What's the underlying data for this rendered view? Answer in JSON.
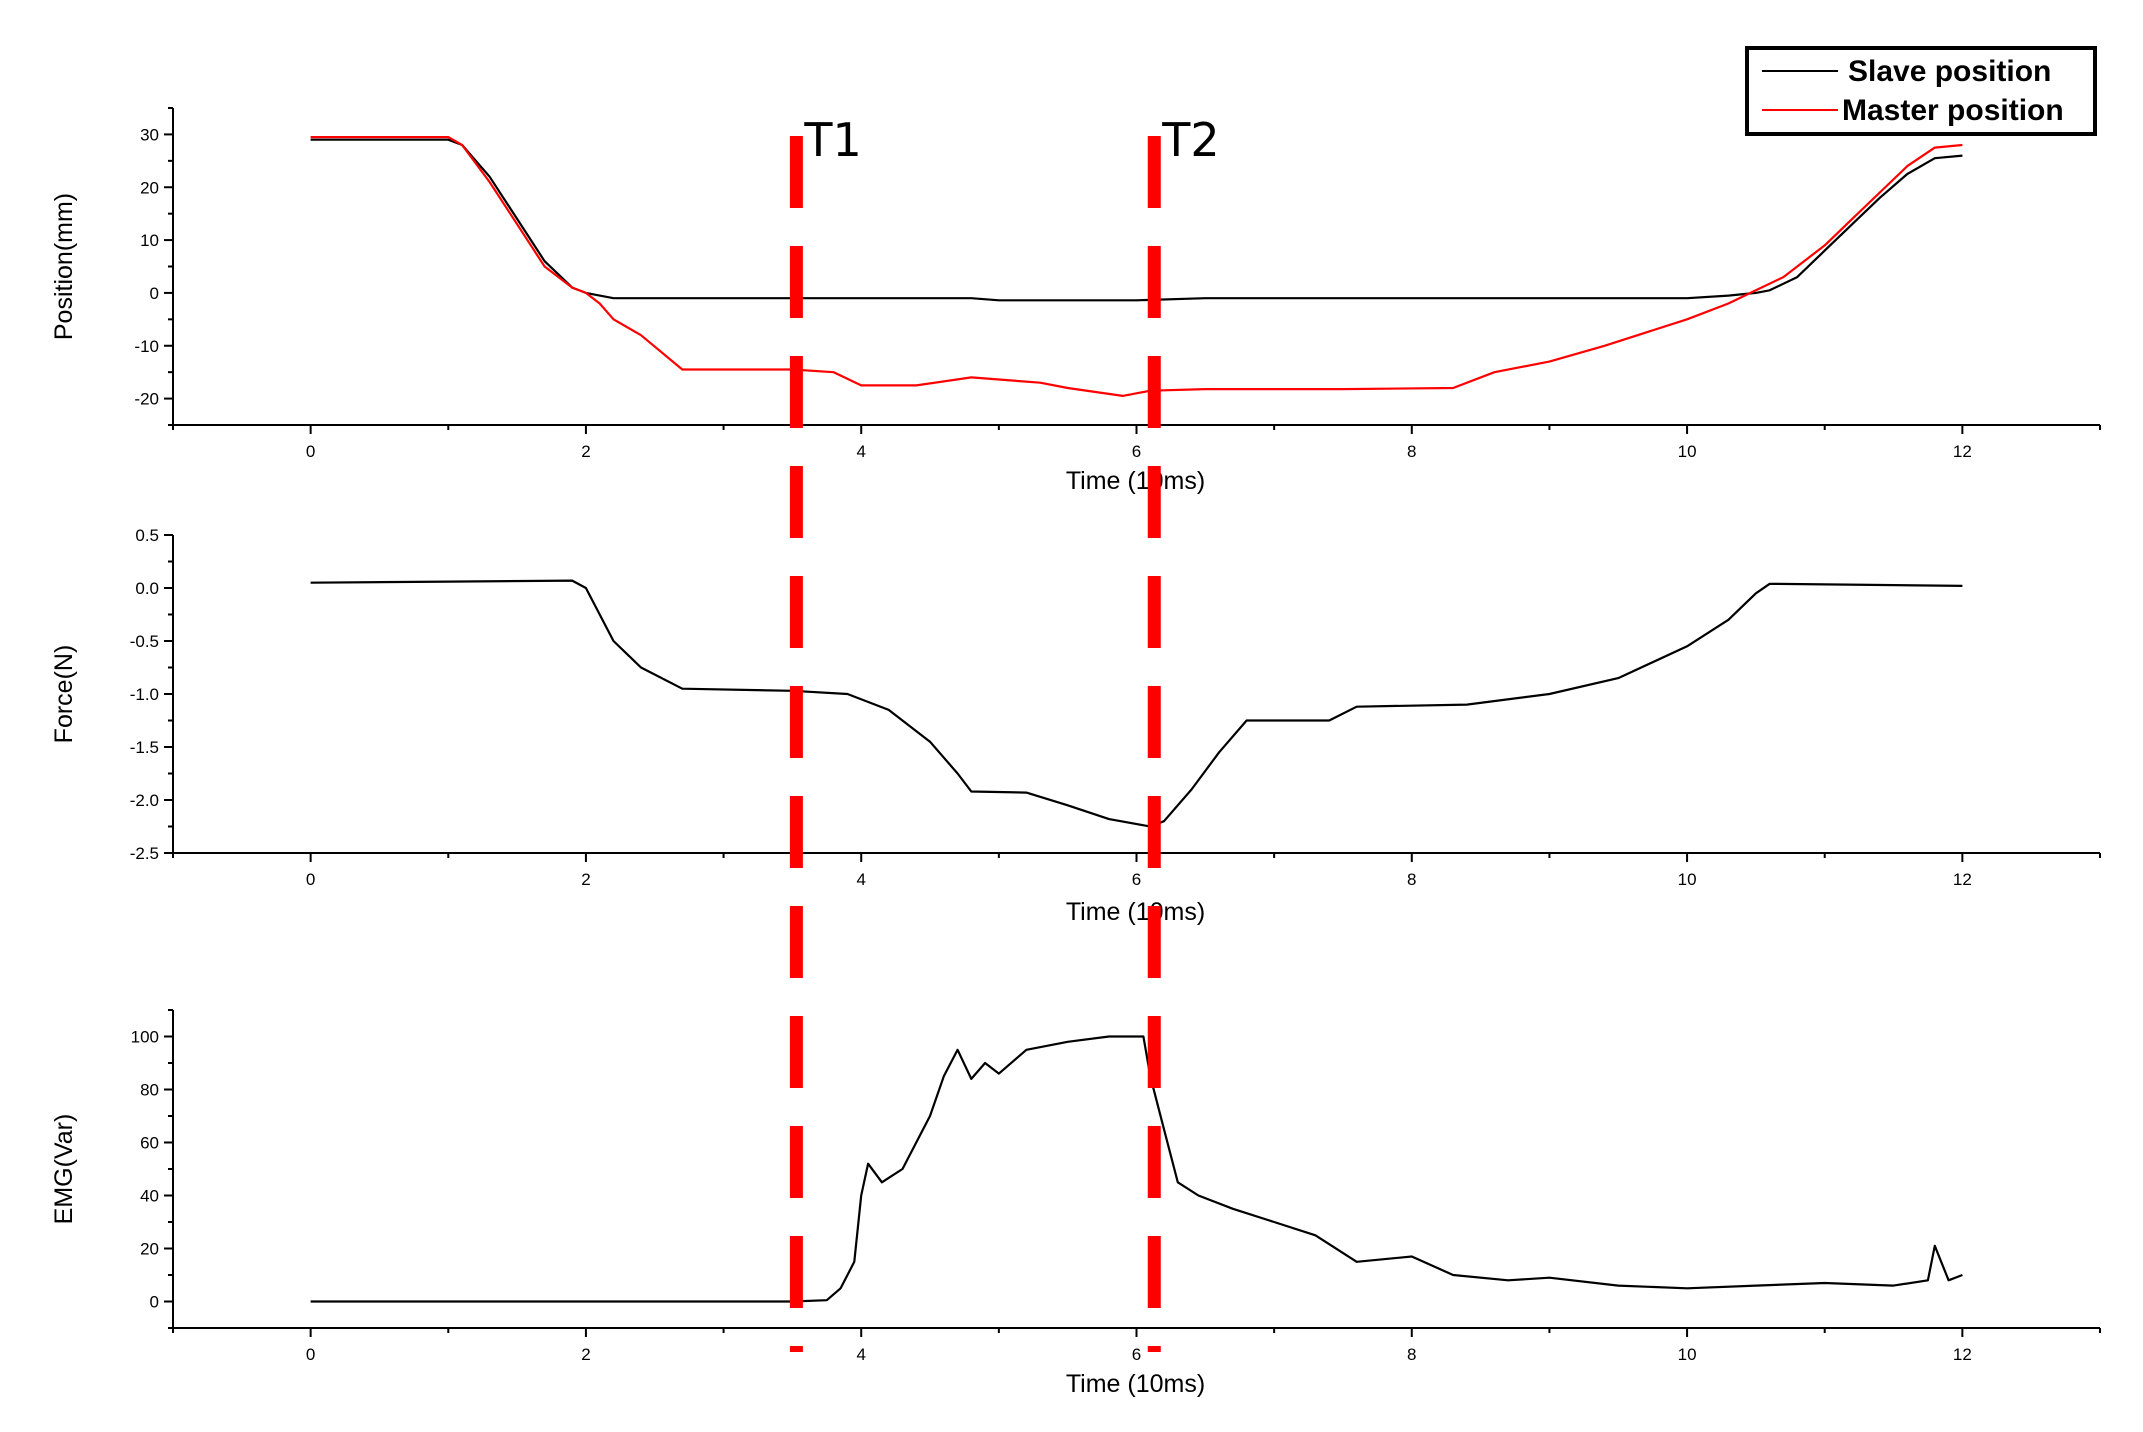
{
  "chart_data": [
    {
      "type": "line",
      "xlabel": "Time (10ms)",
      "ylabel": "Position(mm)",
      "xlim": [
        -1,
        13
      ],
      "ylim": [
        -25,
        35
      ],
      "x_ticks": [
        0,
        2,
        4,
        6,
        8,
        10,
        12
      ],
      "y_ticks": [
        30,
        20,
        10,
        0,
        -10,
        -20
      ],
      "legend_position": "top-right",
      "series": [
        {
          "name": "Slave position",
          "color": "#000000",
          "points": [
            [
              0,
              29
            ],
            [
              1,
              29
            ],
            [
              1.1,
              28
            ],
            [
              1.3,
              22
            ],
            [
              1.5,
              14
            ],
            [
              1.7,
              6
            ],
            [
              1.9,
              1
            ],
            [
              2,
              0
            ],
            [
              2.2,
              -1
            ],
            [
              4,
              -1
            ],
            [
              4.8,
              -1
            ],
            [
              5,
              -1.4
            ],
            [
              6,
              -1.4
            ],
            [
              6.5,
              -1
            ],
            [
              8,
              -1
            ],
            [
              10,
              -1
            ],
            [
              10.3,
              -0.5
            ],
            [
              10.5,
              0
            ],
            [
              10.6,
              0.5
            ],
            [
              10.8,
              3
            ],
            [
              11,
              8
            ],
            [
              11.2,
              13
            ],
            [
              11.4,
              18
            ],
            [
              11.6,
              22.5
            ],
            [
              11.8,
              25.5
            ],
            [
              12,
              26
            ]
          ]
        },
        {
          "name": "Master position",
          "color": "#ff0000",
          "points": [
            [
              0,
              29.5
            ],
            [
              1,
              29.5
            ],
            [
              1.1,
              28
            ],
            [
              1.3,
              21
            ],
            [
              1.5,
              13
            ],
            [
              1.7,
              5
            ],
            [
              1.9,
              1
            ],
            [
              2,
              0
            ],
            [
              2.1,
              -2
            ],
            [
              2.2,
              -5
            ],
            [
              2.4,
              -8
            ],
            [
              2.7,
              -14.5
            ],
            [
              3.5,
              -14.5
            ],
            [
              3.8,
              -15
            ],
            [
              4,
              -17.5
            ],
            [
              4.4,
              -17.5
            ],
            [
              4.8,
              -16
            ],
            [
              5.3,
              -17
            ],
            [
              5.5,
              -18
            ],
            [
              5.9,
              -19.5
            ],
            [
              6.1,
              -18.5
            ],
            [
              6.5,
              -18.2
            ],
            [
              7.5,
              -18.2
            ],
            [
              8.3,
              -18
            ],
            [
              8.6,
              -15
            ],
            [
              9,
              -13
            ],
            [
              9.4,
              -10
            ],
            [
              10,
              -5
            ],
            [
              10.3,
              -2
            ],
            [
              10.5,
              0.5
            ],
            [
              10.7,
              3
            ],
            [
              11,
              9
            ],
            [
              11.2,
              14
            ],
            [
              11.4,
              19
            ],
            [
              11.6,
              24
            ],
            [
              11.8,
              27.5
            ],
            [
              12,
              28
            ]
          ]
        }
      ]
    },
    {
      "type": "line",
      "xlabel": "Time (10ms)",
      "ylabel": "Force(N)",
      "xlim": [
        -1,
        13
      ],
      "ylim": [
        -2.5,
        0.5
      ],
      "x_ticks": [
        0,
        2,
        4,
        6,
        8,
        10,
        12
      ],
      "y_ticks": [
        0.5,
        0.0,
        -0.5,
        -1.0,
        -1.5,
        -2.0,
        -2.5
      ],
      "y_tick_labels": [
        "0.5",
        "0.0",
        "-0.5",
        "-1.0",
        "-1.5",
        "-2.0",
        "-2.5"
      ],
      "series": [
        {
          "name": "",
          "color": "#000000",
          "points": [
            [
              0,
              0.05
            ],
            [
              1,
              0.06
            ],
            [
              1.9,
              0.07
            ],
            [
              2,
              0
            ],
            [
              2.2,
              -0.5
            ],
            [
              2.4,
              -0.75
            ],
            [
              2.7,
              -0.95
            ],
            [
              3.5,
              -0.97
            ],
            [
              3.9,
              -1.0
            ],
            [
              4.2,
              -1.15
            ],
            [
              4.5,
              -1.45
            ],
            [
              4.7,
              -1.75
            ],
            [
              4.8,
              -1.92
            ],
            [
              5.2,
              -1.93
            ],
            [
              5.5,
              -2.05
            ],
            [
              5.8,
              -2.18
            ],
            [
              6.1,
              -2.25
            ],
            [
              6.2,
              -2.2
            ],
            [
              6.4,
              -1.9
            ],
            [
              6.6,
              -1.55
            ],
            [
              6.8,
              -1.25
            ],
            [
              7.4,
              -1.25
            ],
            [
              7.6,
              -1.12
            ],
            [
              8.4,
              -1.1
            ],
            [
              9,
              -1.0
            ],
            [
              9.5,
              -0.85
            ],
            [
              10,
              -0.55
            ],
            [
              10.3,
              -0.3
            ],
            [
              10.5,
              -0.05
            ],
            [
              10.6,
              0.04
            ],
            [
              12,
              0.02
            ]
          ]
        }
      ]
    },
    {
      "type": "line",
      "xlabel": "Time (10ms)",
      "ylabel": "EMG(Var)",
      "xlim": [
        -1,
        13
      ],
      "ylim": [
        -10,
        110
      ],
      "x_ticks": [
        0,
        2,
        4,
        6,
        8,
        10,
        12
      ],
      "y_ticks": [
        100,
        80,
        60,
        40,
        20,
        0
      ],
      "series": [
        {
          "name": "",
          "color": "#000000",
          "points": [
            [
              0,
              0
            ],
            [
              3.5,
              0
            ],
            [
              3.75,
              0.5
            ],
            [
              3.85,
              5
            ],
            [
              3.95,
              15
            ],
            [
              4.0,
              40
            ],
            [
              4.05,
              52
            ],
            [
              4.15,
              45
            ],
            [
              4.3,
              50
            ],
            [
              4.5,
              70
            ],
            [
              4.6,
              85
            ],
            [
              4.7,
              95
            ],
            [
              4.8,
              84
            ],
            [
              4.9,
              90
            ],
            [
              5.0,
              86
            ],
            [
              5.2,
              95
            ],
            [
              5.5,
              98
            ],
            [
              5.8,
              100
            ],
            [
              6.05,
              100
            ],
            [
              6.1,
              85
            ],
            [
              6.2,
              65
            ],
            [
              6.3,
              45
            ],
            [
              6.45,
              40
            ],
            [
              6.7,
              35
            ],
            [
              7.0,
              30
            ],
            [
              7.3,
              25
            ],
            [
              7.6,
              15
            ],
            [
              8.0,
              17
            ],
            [
              8.3,
              10
            ],
            [
              8.7,
              8
            ],
            [
              9.0,
              9
            ],
            [
              9.5,
              6
            ],
            [
              10.0,
              5
            ],
            [
              10.5,
              6
            ],
            [
              11.0,
              7
            ],
            [
              11.5,
              6
            ],
            [
              11.75,
              8
            ],
            [
              11.8,
              21
            ],
            [
              11.9,
              8
            ],
            [
              12,
              10
            ]
          ]
        }
      ]
    }
  ],
  "markers": [
    {
      "label": "T1",
      "x": 3.5,
      "color": "#ff0000"
    },
    {
      "label": "T2",
      "x": 6.1,
      "color": "#ff0000"
    }
  ]
}
